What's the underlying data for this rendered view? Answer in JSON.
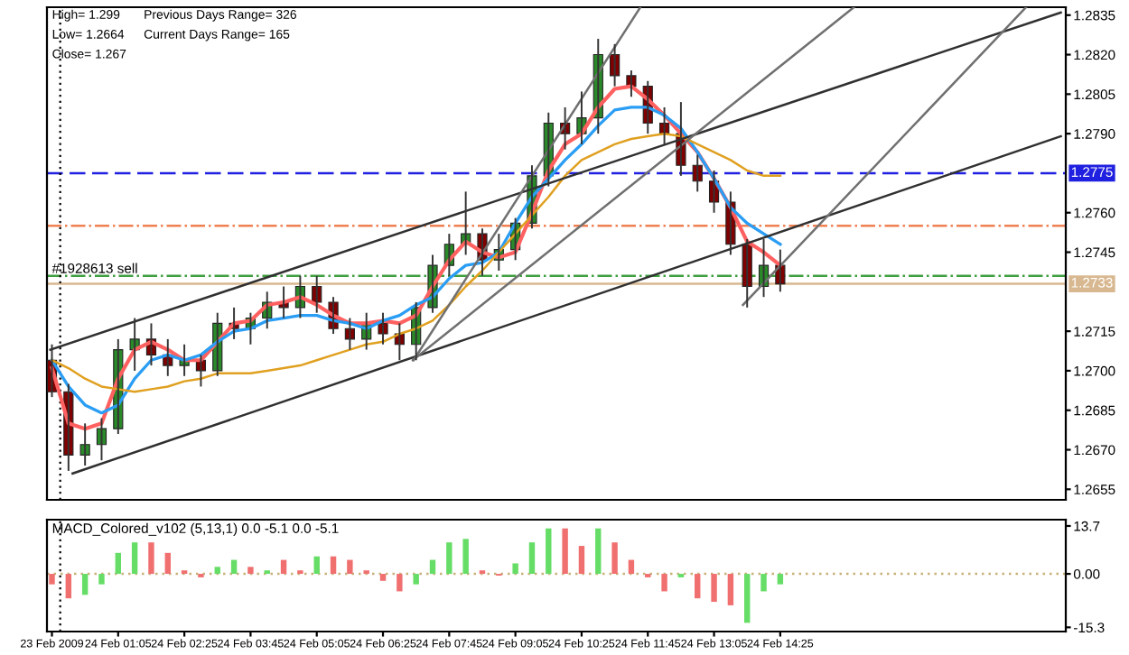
{
  "chart_data": [
    {
      "type": "candlestick",
      "annotations": [
        "High= 1.299",
        "Previous Days Range= 326",
        "Low= 1.2664",
        "Current Days Range= 165",
        "Close= 1.267",
        {
          "text": "#1928613 sell",
          "x": "2009-02-23T23:45",
          "y": 1.2736
        }
      ],
      "x": [
        "2009-02-23T23:45",
        "2009-02-24T00:05",
        "2009-02-24T00:25",
        "2009-02-24T00:45",
        "2009-02-24T01:05",
        "2009-02-24T01:25",
        "2009-02-24T01:45",
        "2009-02-24T02:05",
        "2009-02-24T02:25",
        "2009-02-24T02:45",
        "2009-02-24T03:05",
        "2009-02-24T03:25",
        "2009-02-24T03:45",
        "2009-02-24T04:05",
        "2009-02-24T04:25",
        "2009-02-24T04:45",
        "2009-02-24T05:05",
        "2009-02-24T05:25",
        "2009-02-24T05:45",
        "2009-02-24T06:05",
        "2009-02-24T06:25",
        "2009-02-24T06:45",
        "2009-02-24T07:05",
        "2009-02-24T07:25",
        "2009-02-24T07:45",
        "2009-02-24T08:05",
        "2009-02-24T08:25",
        "2009-02-24T08:45",
        "2009-02-24T09:05",
        "2009-02-24T09:25",
        "2009-02-24T09:45",
        "2009-02-24T10:05",
        "2009-02-24T10:25",
        "2009-02-24T10:45",
        "2009-02-24T11:05",
        "2009-02-24T11:25",
        "2009-02-24T11:45",
        "2009-02-24T12:05",
        "2009-02-24T12:25",
        "2009-02-24T12:45",
        "2009-02-24T13:05",
        "2009-02-24T13:25",
        "2009-02-24T13:45",
        "2009-02-24T14:05",
        "2009-02-24T14:25"
      ],
      "ohlc": [
        [
          1.2704,
          1.271,
          1.269,
          1.2692
        ],
        [
          1.2692,
          1.2695,
          1.2662,
          1.2668
        ],
        [
          1.2668,
          1.268,
          1.2664,
          1.2672
        ],
        [
          1.2672,
          1.2682,
          1.2666,
          1.2678
        ],
        [
          1.2678,
          1.2712,
          1.2676,
          1.2708
        ],
        [
          1.2708,
          1.272,
          1.27,
          1.2712
        ],
        [
          1.2712,
          1.2718,
          1.2702,
          1.2706
        ],
        [
          1.2706,
          1.2712,
          1.2698,
          1.2702
        ],
        [
          1.2702,
          1.271,
          1.2698,
          1.2704
        ],
        [
          1.2704,
          1.2706,
          1.2694,
          1.27
        ],
        [
          1.27,
          1.2722,
          1.2698,
          1.2718
        ],
        [
          1.2718,
          1.2724,
          1.2712,
          1.2716
        ],
        [
          1.2716,
          1.2722,
          1.271,
          1.272
        ],
        [
          1.272,
          1.273,
          1.2716,
          1.2726
        ],
        [
          1.2726,
          1.2732,
          1.272,
          1.2724
        ],
        [
          1.2724,
          1.2736,
          1.272,
          1.2732
        ],
        [
          1.2732,
          1.2736,
          1.2722,
          1.2726
        ],
        [
          1.2726,
          1.2728,
          1.2714,
          1.2716
        ],
        [
          1.2716,
          1.272,
          1.2708,
          1.2712
        ],
        [
          1.2712,
          1.2722,
          1.2708,
          1.2718
        ],
        [
          1.2718,
          1.2722,
          1.271,
          1.2714
        ],
        [
          1.2714,
          1.2718,
          1.2704,
          1.271
        ],
        [
          1.271,
          1.2726,
          1.2704,
          1.2724
        ],
        [
          1.2724,
          1.2744,
          1.2722,
          1.274
        ],
        [
          1.274,
          1.2752,
          1.2736,
          1.2748
        ],
        [
          1.2748,
          1.2768,
          1.2744,
          1.2752
        ],
        [
          1.2752,
          1.2754,
          1.2736,
          1.2742
        ],
        [
          1.2742,
          1.2752,
          1.2738,
          1.2746
        ],
        [
          1.2746,
          1.2758,
          1.2742,
          1.2756
        ],
        [
          1.2756,
          1.2778,
          1.2754,
          1.2774
        ],
        [
          1.2774,
          1.2798,
          1.277,
          1.2794
        ],
        [
          1.2794,
          1.28,
          1.2784,
          1.279
        ],
        [
          1.279,
          1.2806,
          1.2786,
          1.2796
        ],
        [
          1.2796,
          1.2826,
          1.279,
          1.282
        ],
        [
          1.282,
          1.2824,
          1.2808,
          1.2812
        ],
        [
          1.2812,
          1.2814,
          1.2804,
          1.2808
        ],
        [
          1.2808,
          1.281,
          1.279,
          1.2794
        ],
        [
          1.2794,
          1.28,
          1.2786,
          1.279
        ],
        [
          1.279,
          1.2802,
          1.2774,
          1.2778
        ],
        [
          1.2778,
          1.2782,
          1.2768,
          1.2772
        ],
        [
          1.2772,
          1.2776,
          1.276,
          1.2764
        ],
        [
          1.2764,
          1.2768,
          1.2744,
          1.2748
        ],
        [
          1.2748,
          1.275,
          1.2724,
          1.2732
        ],
        [
          1.2732,
          1.275,
          1.2728,
          1.274
        ],
        [
          1.274,
          1.2746,
          1.273,
          1.2733
        ]
      ],
      "colors": [
        "#800000",
        "#800000",
        "#2a8a2a",
        "#2a8a2a",
        "#2a8a2a",
        "#2a8a2a",
        "#800000",
        "#800000",
        "#2a8a2a",
        "#800000",
        "#2a8a2a",
        "#800000",
        "#2a8a2a",
        "#2a8a2a",
        "#800000",
        "#2a8a2a",
        "#800000",
        "#800000",
        "#800000",
        "#2a8a2a",
        "#800000",
        "#800000",
        "#2a8a2a",
        "#2a8a2a",
        "#2a8a2a",
        "#2a8a2a",
        "#800000",
        "#2a8a2a",
        "#2a8a2a",
        "#2a8a2a",
        "#2a8a2a",
        "#800000",
        "#2a8a2a",
        "#2a8a2a",
        "#800000",
        "#800000",
        "#800000",
        "#800000",
        "#800000",
        "#800000",
        "#800000",
        "#800000",
        "#800000",
        "#2a8a2a",
        "#800000"
      ],
      "series": [
        {
          "type": "line",
          "color": "#ff6060",
          "values": [
            1.2701,
            1.268,
            1.2678,
            1.268,
            1.2697,
            1.2708,
            1.2711,
            1.2708,
            1.2704,
            1.2704,
            1.2711,
            1.2718,
            1.2719,
            1.2725,
            1.2726,
            1.2728,
            1.2725,
            1.2721,
            1.2718,
            1.2718,
            1.2719,
            1.2718,
            1.2721,
            1.2732,
            1.2742,
            1.2749,
            1.2745,
            1.2743,
            1.2745,
            1.276,
            1.2776,
            1.2786,
            1.279,
            1.28,
            1.2807,
            1.2808,
            1.2803,
            1.2797,
            1.279,
            1.2783,
            1.2773,
            1.2762,
            1.2749,
            1.2745,
            1.274
          ]
        },
        {
          "type": "line",
          "color": "#2a9df4",
          "values": [
            1.2704,
            1.2694,
            1.2687,
            1.2684,
            1.2687,
            1.2697,
            1.2704,
            1.2706,
            1.2704,
            1.2706,
            1.2711,
            1.2715,
            1.2716,
            1.2719,
            1.272,
            1.2721,
            1.2721,
            1.2719,
            1.2718,
            1.2716,
            1.2719,
            1.2721,
            1.2725,
            1.2728,
            1.2735,
            1.274,
            1.2741,
            1.2745,
            1.2756,
            1.2766,
            1.2773,
            1.278,
            1.2786,
            1.2793,
            1.2799,
            1.28,
            1.28,
            1.2797,
            1.2792,
            1.2783,
            1.2773,
            1.2762,
            1.2756,
            1.2752,
            1.2748
          ]
        },
        {
          "type": "line",
          "color": "#e0a020",
          "values": [
            1.2704,
            1.2701,
            1.2697,
            1.2694,
            1.2693,
            1.2692,
            1.2693,
            1.2694,
            1.2696,
            1.2697,
            1.2699,
            1.2699,
            1.2699,
            1.27,
            1.2701,
            1.2702,
            1.2704,
            1.2706,
            1.2708,
            1.271,
            1.2711,
            1.2714,
            1.2716,
            1.2719,
            1.2725,
            1.2732,
            1.2738,
            1.2745,
            1.2752,
            1.2759,
            1.2766,
            1.2774,
            1.278,
            1.2783,
            1.2786,
            1.2788,
            1.2789,
            1.279,
            1.2789,
            1.2786,
            1.2783,
            1.278,
            1.2776,
            1.2774,
            1.2774
          ]
        },
        {
          "type": "line",
          "color": "#303030",
          "x": [
            "2009-02-23T23:43",
            "2009-02-24T20:04"
          ],
          "values": [
            1.2708,
            1.2836
          ]
        },
        {
          "type": "line",
          "color": "#303030",
          "x": [
            "2009-02-24T00:10",
            "2009-02-24T20:04"
          ],
          "values": [
            1.2661,
            1.2789
          ]
        },
        {
          "type": "line",
          "color": "#707070",
          "x": [
            "2009-02-24T07:01",
            "2009-02-24T15:54"
          ],
          "values": [
            1.2704,
            1.2838
          ]
        },
        {
          "type": "line",
          "color": "#707070",
          "x": [
            "2009-02-24T07:02",
            "2009-02-24T11:36"
          ],
          "values": [
            1.2704,
            1.2838
          ]
        },
        {
          "type": "line",
          "color": "#707070",
          "x": [
            "2009-02-24T13:40",
            "2009-02-24T19:22"
          ],
          "values": [
            1.2725,
            1.2838
          ]
        }
      ],
      "xlim": [
        "2009-02-23T23:39",
        "2009-02-24T20:10"
      ],
      "ylim": [
        1.2651,
        1.2838
      ],
      "yticks": [
        {
          "value": 1.2835,
          "label": "1.2835"
        },
        {
          "value": 1.282,
          "label": "1.2820"
        },
        {
          "value": 1.2805,
          "label": "1.2805"
        },
        {
          "value": 1.279,
          "label": "1.2790"
        },
        {
          "value": 1.276,
          "label": "1.2760"
        },
        {
          "value": 1.2745,
          "label": "1.2745"
        },
        {
          "value": 1.2715,
          "label": "1.2715"
        },
        {
          "value": 1.27,
          "label": "1.2700"
        },
        {
          "value": 1.2685,
          "label": "1.2685"
        },
        {
          "value": 1.267,
          "label": "1.2670"
        },
        {
          "value": 1.2655,
          "label": "1.2655"
        }
      ],
      "ref_lines": [
        {
          "axis": "y",
          "value": 1.2775,
          "label": "1.2775",
          "color": "#2020e0",
          "line_style": "dashed"
        },
        {
          "axis": "y",
          "value": 1.2755,
          "color": "#f08050",
          "line_style": "dashdot"
        },
        {
          "axis": "y",
          "value": 1.2736,
          "color": "#40a040",
          "line_style": "dashdot"
        },
        {
          "axis": "y",
          "value": 1.2733,
          "label": "1.2733",
          "color": "#d8b890",
          "line_style": "solid"
        },
        {
          "axis": "x",
          "value": "2009-02-23T23:55",
          "color": "#000000",
          "line_style": "dotted"
        }
      ],
      "tick_labels": "y"
    },
    {
      "type": "bar",
      "title": "MACD_Colored_v102 (5,13,1) 0.0 -5.1 0.0 -5.1",
      "x": [
        "2009-02-23T23:45",
        "2009-02-24T00:05",
        "2009-02-24T00:25",
        "2009-02-24T00:45",
        "2009-02-24T01:05",
        "2009-02-24T01:25",
        "2009-02-24T01:45",
        "2009-02-24T02:05",
        "2009-02-24T02:25",
        "2009-02-24T02:45",
        "2009-02-24T03:05",
        "2009-02-24T03:25",
        "2009-02-24T03:45",
        "2009-02-24T04:05",
        "2009-02-24T04:25",
        "2009-02-24T04:45",
        "2009-02-24T05:05",
        "2009-02-24T05:25",
        "2009-02-24T05:45",
        "2009-02-24T06:05",
        "2009-02-24T06:25",
        "2009-02-24T06:45",
        "2009-02-24T07:05",
        "2009-02-24T07:25",
        "2009-02-24T07:45",
        "2009-02-24T08:05",
        "2009-02-24T08:25",
        "2009-02-24T08:45",
        "2009-02-24T09:05",
        "2009-02-24T09:25",
        "2009-02-24T09:45",
        "2009-02-24T10:05",
        "2009-02-24T10:25",
        "2009-02-24T10:45",
        "2009-02-24T11:05",
        "2009-02-24T11:25",
        "2009-02-24T11:45",
        "2009-02-24T12:05",
        "2009-02-24T12:25",
        "2009-02-24T12:45",
        "2009-02-24T13:05",
        "2009-02-24T13:25",
        "2009-02-24T13:45",
        "2009-02-24T14:05",
        "2009-02-24T14:25"
      ],
      "values": [
        -3,
        -7,
        -6,
        -3,
        6,
        9,
        9,
        6,
        1,
        -1,
        2,
        4,
        2,
        1,
        4,
        1,
        5,
        5,
        4,
        1,
        -2,
        -5,
        -3,
        4,
        9,
        10,
        1,
        -0.5,
        3,
        9,
        13,
        13,
        8,
        13,
        9,
        4,
        -1,
        -5,
        -1,
        -7,
        -8,
        -9,
        -14,
        -5,
        -3
      ],
      "colors": [
        "#f07070",
        "#f07070",
        "#66dd66",
        "#66dd66",
        "#66dd66",
        "#66dd66",
        "#f07070",
        "#f07070",
        "#f07070",
        "#f07070",
        "#66dd66",
        "#66dd66",
        "#f07070",
        "#66dd66",
        "#f07070",
        "#f07070",
        "#66dd66",
        "#f07070",
        "#f07070",
        "#f07070",
        "#f07070",
        "#f07070",
        "#66dd66",
        "#66dd66",
        "#66dd66",
        "#66dd66",
        "#f07070",
        "#f07070",
        "#66dd66",
        "#66dd66",
        "#66dd66",
        "#f07070",
        "#f07070",
        "#66dd66",
        "#f07070",
        "#f07070",
        "#f07070",
        "#f07070",
        "#66dd66",
        "#f07070",
        "#f07070",
        "#f07070",
        "#66dd66",
        "#66dd66",
        "#66dd66"
      ],
      "xlim": [
        "2009-02-23T23:39",
        "2009-02-24T20:10"
      ],
      "ylim": [
        -16.5,
        15.5
      ],
      "xticks": [
        {
          "value": "2009-02-23T23:45",
          "label": "23 Feb 2009"
        },
        {
          "value": "2009-02-24T01:05",
          "label": "24 Feb 01:05"
        },
        {
          "value": "2009-02-24T02:25",
          "label": "24 Feb 02:25"
        },
        {
          "value": "2009-02-24T03:45",
          "label": "24 Feb 03:45"
        },
        {
          "value": "2009-02-24T05:05",
          "label": "24 Feb 05:05"
        },
        {
          "value": "2009-02-24T06:25",
          "label": "24 Feb 06:25"
        },
        {
          "value": "2009-02-24T07:45",
          "label": "24 Feb 07:45"
        },
        {
          "value": "2009-02-24T09:05",
          "label": "24 Feb 09:05"
        },
        {
          "value": "2009-02-24T10:25",
          "label": "24 Feb 10:25"
        },
        {
          "value": "2009-02-24T11:45",
          "label": "24 Feb 11:45"
        },
        {
          "value": "2009-02-24T13:05",
          "label": "24 Feb 13:05"
        },
        {
          "value": "2009-02-24T14:25",
          "label": "24 Feb 14:25"
        }
      ],
      "yticks": [
        13.7,
        {
          "value": 0,
          "label": "0.00"
        },
        -15.3
      ],
      "ref_lines": [
        {
          "axis": "y",
          "value": 0,
          "color": "#c8b07a",
          "line_style": "dotted"
        },
        {
          "axis": "x",
          "value": "2009-02-23T23:55",
          "color": "#000000",
          "line_style": "dotted"
        }
      ]
    }
  ]
}
